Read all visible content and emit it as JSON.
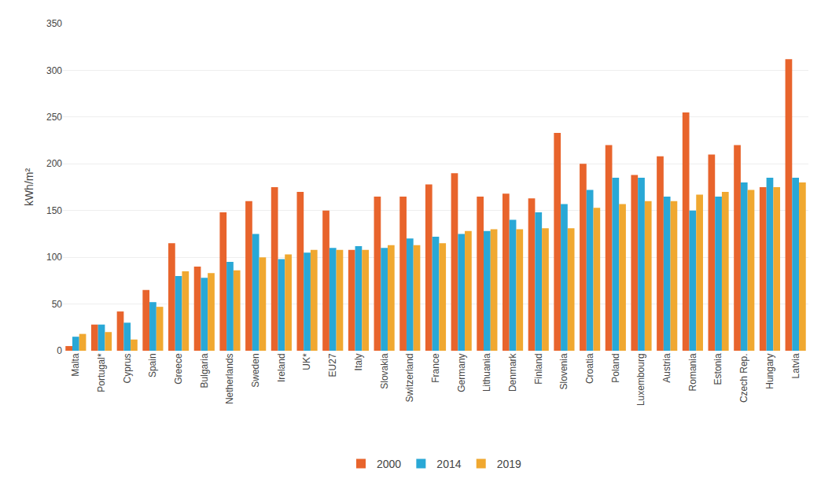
{
  "chart_data": {
    "type": "bar",
    "ylabel": "kWh/m²",
    "categories": [
      "Malta",
      "Portugal*",
      "Cyprus",
      "Spain",
      "Greece",
      "Bulgaria",
      "Netherlands",
      "Sweden",
      "Ireland",
      "UK*",
      "EU27",
      "Italy",
      "Slovakia",
      "Switzerland",
      "France",
      "Germany",
      "Lithuania",
      "Denmark",
      "Finland",
      "Slovenia",
      "Croatia",
      "Poland",
      "Luxembourg",
      "Austria",
      "Romania",
      "Estonia",
      "Czech Rep.",
      "Hungary",
      "Latvia"
    ],
    "series": [
      {
        "name": "2000",
        "color": "#e8642c",
        "values": [
          5,
          28,
          42,
          65,
          115,
          90,
          148,
          160,
          175,
          170,
          150,
          108,
          165,
          165,
          178,
          190,
          165,
          168,
          163,
          233,
          200,
          220,
          188,
          208,
          255,
          210,
          220,
          175,
          312
        ]
      },
      {
        "name": "2014",
        "color": "#29a8d6",
        "values": [
          15,
          28,
          30,
          52,
          80,
          78,
          95,
          125,
          98,
          105,
          110,
          112,
          110,
          120,
          122,
          125,
          128,
          140,
          148,
          157,
          172,
          185,
          185,
          165,
          150,
          165,
          180,
          185,
          185
        ]
      },
      {
        "name": "2019",
        "color": "#f0a830",
        "values": [
          18,
          20,
          12,
          47,
          85,
          83,
          86,
          100,
          103,
          108,
          108,
          108,
          113,
          113,
          115,
          128,
          130,
          130,
          131,
          131,
          153,
          157,
          160,
          160,
          167,
          170,
          172,
          175,
          180
        ]
      }
    ],
    "ylim": [
      0,
      350
    ],
    "yticks": [
      0,
      50,
      100,
      150,
      200,
      250,
      300,
      350
    ],
    "grid": true,
    "legend": "bottom"
  }
}
